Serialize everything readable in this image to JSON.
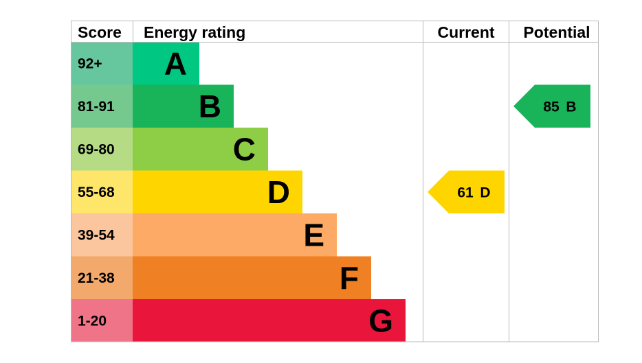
{
  "chart_data": {
    "type": "bar",
    "headers": {
      "score": "Score",
      "energy_rating": "Energy rating",
      "current": "Current",
      "potential": "Potential"
    },
    "bands": [
      {
        "score": "92+",
        "letter": "A",
        "bar_color": "#00c781",
        "score_color": "#66c79f"
      },
      {
        "score": "81-91",
        "letter": "B",
        "bar_color": "#19b459",
        "score_color": "#75c98e"
      },
      {
        "score": "69-80",
        "letter": "C",
        "bar_color": "#8dce46",
        "score_color": "#b5dc85"
      },
      {
        "score": "55-68",
        "letter": "D",
        "bar_color": "#ffd500",
        "score_color": "#fde66a"
      },
      {
        "score": "39-54",
        "letter": "E",
        "bar_color": "#fcaa65",
        "score_color": "#fbc69d"
      },
      {
        "score": "21-38",
        "letter": "F",
        "bar_color": "#ef8023",
        "score_color": "#f3a96b"
      },
      {
        "score": "1-20",
        "letter": "G",
        "bar_color": "#e9153b",
        "score_color": "#f07488"
      }
    ],
    "current": {
      "value": 61,
      "band": "D",
      "color": "#ffd500"
    },
    "potential": {
      "value": 85,
      "band": "B",
      "color": "#19b459"
    }
  }
}
